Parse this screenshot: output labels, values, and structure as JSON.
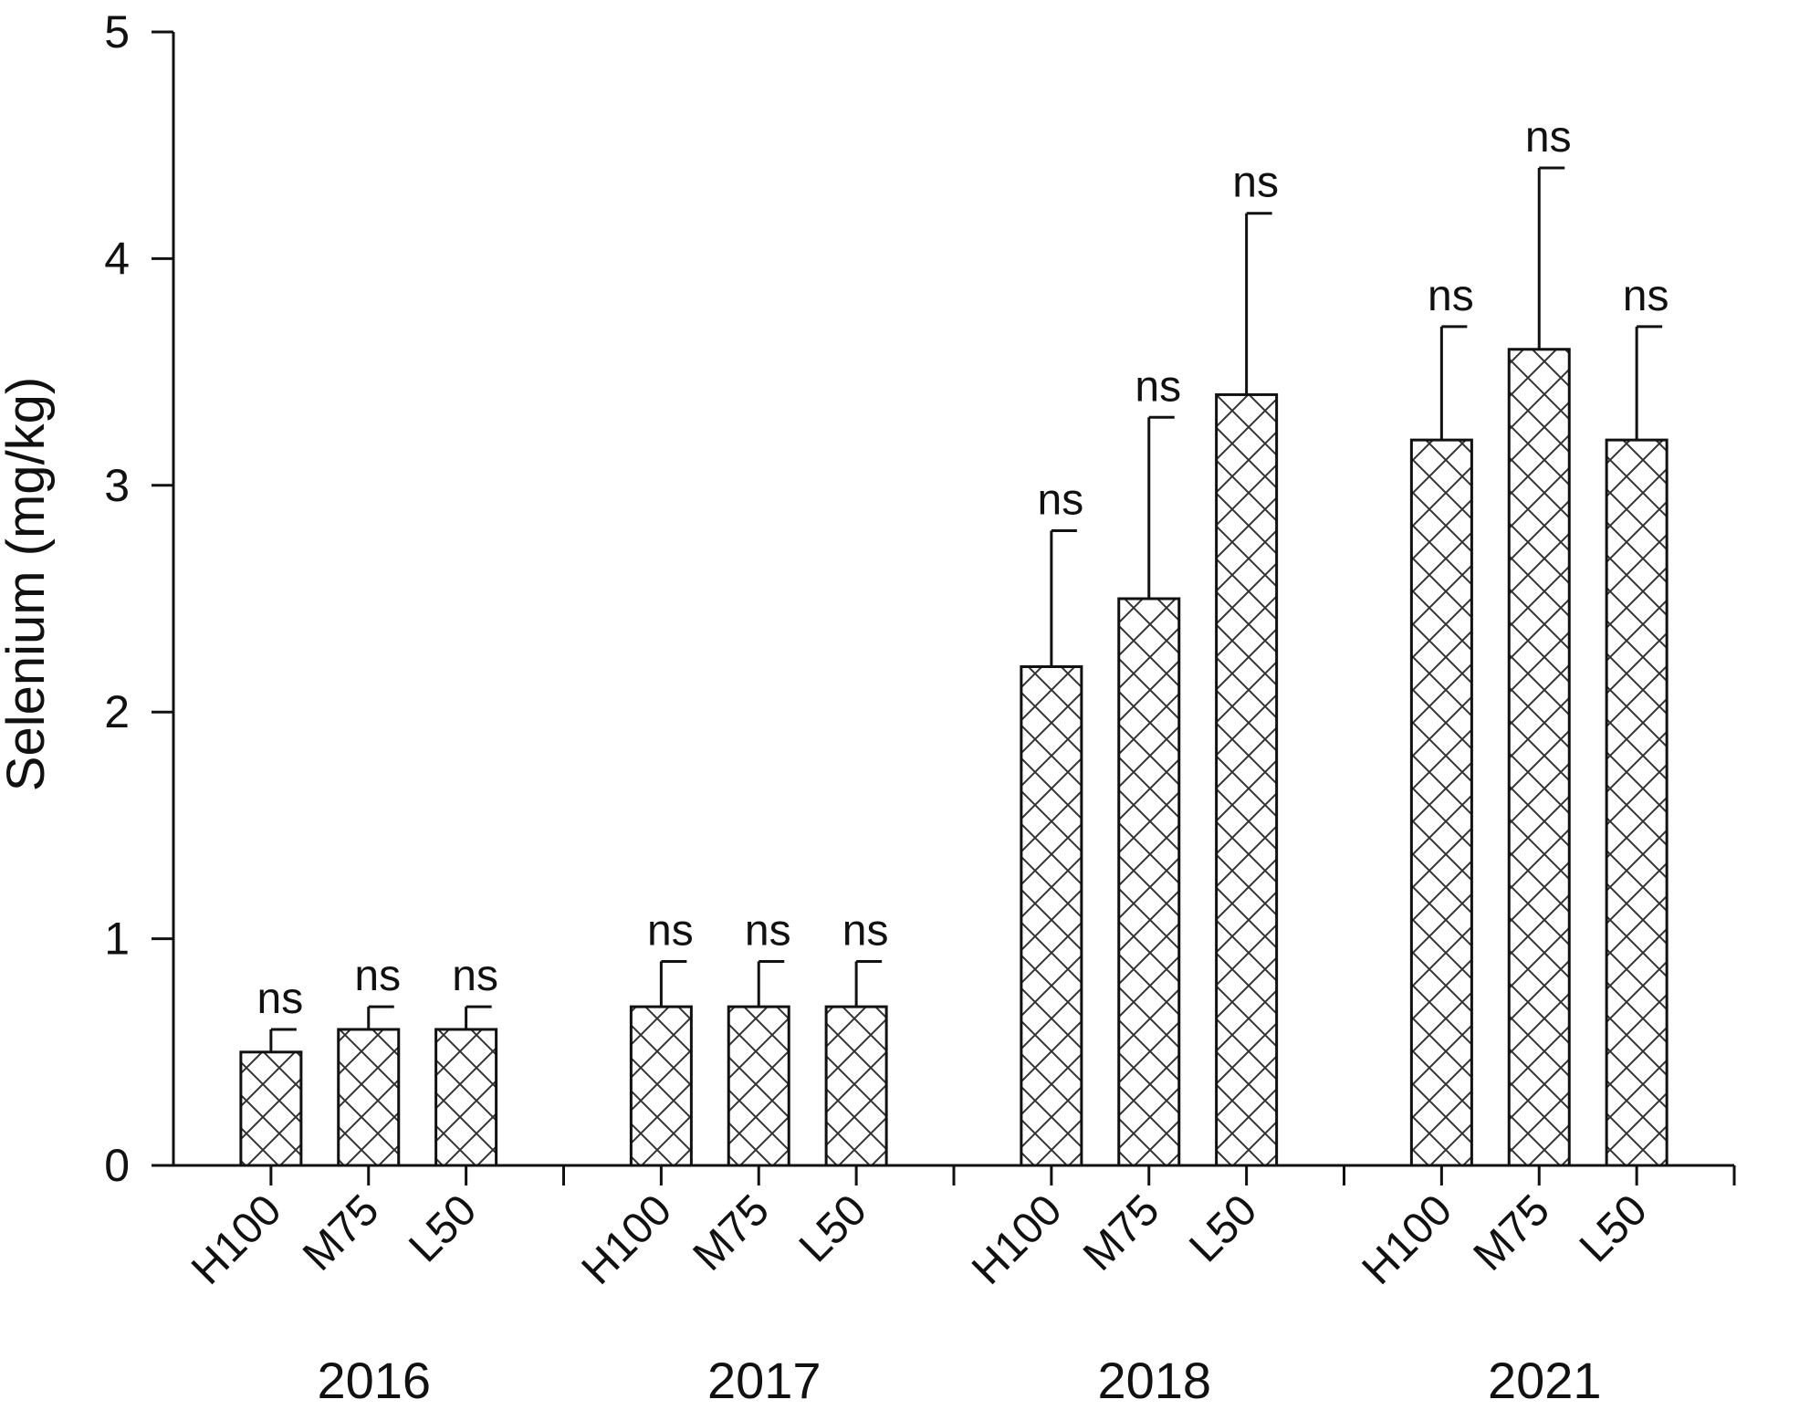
{
  "chart_data": {
    "type": "bar",
    "ylabel": "Selenium (mg/kg)",
    "ylim": [
      0,
      5
    ],
    "yticks": [
      "0",
      "1",
      "2",
      "3",
      "4",
      "5"
    ],
    "grid": false,
    "groups": [
      {
        "label": "2016",
        "bars": [
          {
            "category": "H100",
            "value": 0.5,
            "error": 0.1,
            "annotation": "ns"
          },
          {
            "category": "M75",
            "value": 0.6,
            "error": 0.1,
            "annotation": "ns"
          },
          {
            "category": "L50",
            "value": 0.6,
            "error": 0.1,
            "annotation": "ns"
          }
        ]
      },
      {
        "label": "2017",
        "bars": [
          {
            "category": "H100",
            "value": 0.7,
            "error": 0.2,
            "annotation": "ns"
          },
          {
            "category": "M75",
            "value": 0.7,
            "error": 0.2,
            "annotation": "ns"
          },
          {
            "category": "L50",
            "value": 0.7,
            "error": 0.2,
            "annotation": "ns"
          }
        ]
      },
      {
        "label": "2018",
        "bars": [
          {
            "category": "H100",
            "value": 2.2,
            "error": 0.6,
            "annotation": "ns"
          },
          {
            "category": "M75",
            "value": 2.5,
            "error": 0.8,
            "annotation": "ns"
          },
          {
            "category": "L50",
            "value": 3.4,
            "error": 0.8,
            "annotation": "ns"
          }
        ]
      },
      {
        "label": "2021",
        "bars": [
          {
            "category": "H100",
            "value": 3.2,
            "error": 0.5,
            "annotation": "ns"
          },
          {
            "category": "M75",
            "value": 3.6,
            "error": 0.8,
            "annotation": "ns"
          },
          {
            "category": "L50",
            "value": 3.2,
            "error": 0.5,
            "annotation": "ns"
          }
        ]
      }
    ],
    "bar_fill": "crosshatch",
    "colors": {
      "bar_stroke": "#111111",
      "hatch": "#333333",
      "bar_fill": "#ffffff"
    }
  }
}
